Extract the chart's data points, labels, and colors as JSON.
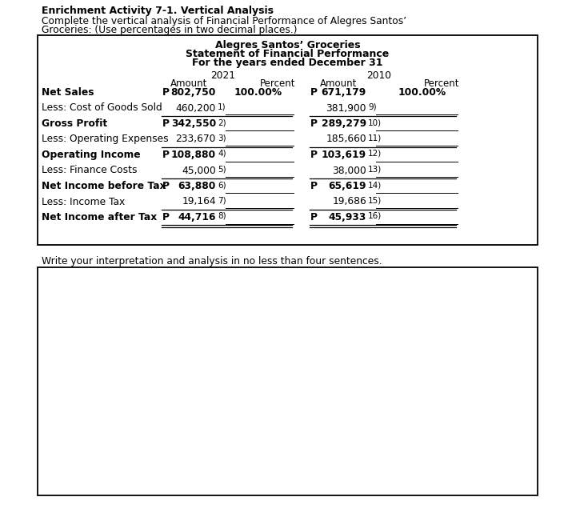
{
  "title_bold": "Enrichment Activity 7-1. Vertical Analysis",
  "subtitle_line1": "Complete the vertical analysis of Financial Performance of Alegres Santos’",
  "subtitle_line2": "Groceries: (Use percentages in two decimal places.)",
  "table_title1": "Alegres Santos’ Groceries",
  "table_title2": "Statement of Financial Performance",
  "table_title3": "For the years ended December 31",
  "year1": "2021",
  "year2": "2010",
  "rows": [
    {
      "label": "Net Sales",
      "bold": true,
      "p1": true,
      "amt1": "802,750",
      "num1": "",
      "pct1": "100.00%",
      "p2": true,
      "amt2": "671,179",
      "num2": "",
      "pct2": "100.00%",
      "ul": false,
      "dul": false
    },
    {
      "label": "Less: Cost of Goods Sold",
      "bold": false,
      "p1": false,
      "amt1": "460,200",
      "num1": "1)",
      "pct1": "",
      "p2": false,
      "amt2": "381,900",
      "num2": "9)",
      "pct2": "",
      "ul": true,
      "dul": false
    },
    {
      "label": "Gross Profit",
      "bold": true,
      "p1": true,
      "amt1": "342,550",
      "num1": "2)",
      "pct1": "",
      "p2": true,
      "amt2": "289,279",
      "num2": "10)",
      "pct2": "",
      "ul": false,
      "dul": false
    },
    {
      "label": "Less: Operating Expenses",
      "bold": false,
      "p1": false,
      "amt1": "233,670",
      "num1": "3)",
      "pct1": "",
      "p2": false,
      "amt2": "185,660",
      "num2": "11)",
      "pct2": "",
      "ul": true,
      "dul": false
    },
    {
      "label": "Operating Income",
      "bold": true,
      "p1": true,
      "amt1": "108,880",
      "num1": "4)",
      "pct1": "",
      "p2": true,
      "amt2": "103,619",
      "num2": "12)",
      "pct2": "",
      "ul": false,
      "dul": false
    },
    {
      "label": "Less: Finance Costs",
      "bold": false,
      "p1": false,
      "amt1": "45,000",
      "num1": "5)",
      "pct1": "",
      "p2": false,
      "amt2": "38,000",
      "num2": "13)",
      "pct2": "",
      "ul": true,
      "dul": false
    },
    {
      "label": "Net Income before Tax",
      "bold": true,
      "p1": true,
      "amt1": "63,880",
      "num1": "6)",
      "pct1": "",
      "p2": true,
      "amt2": "65,619",
      "num2": "14)",
      "pct2": "",
      "ul": false,
      "dul": false
    },
    {
      "label": "Less: Income Tax",
      "bold": false,
      "p1": false,
      "amt1": "19,164",
      "num1": "7)",
      "pct1": "",
      "p2": false,
      "amt2": "19,686",
      "num2": "15)",
      "pct2": "",
      "ul": true,
      "dul": false
    },
    {
      "label": "Net Income after Tax",
      "bold": true,
      "p1": true,
      "amt1": "44,716",
      "num1": "8)",
      "pct1": "",
      "p2": true,
      "amt2": "45,933",
      "num2": "16)",
      "pct2": "",
      "ul": false,
      "dul": true
    }
  ],
  "footer_text": "Write your interpretation and analysis in no less than four sentences.",
  "bg_color": "#ffffff"
}
